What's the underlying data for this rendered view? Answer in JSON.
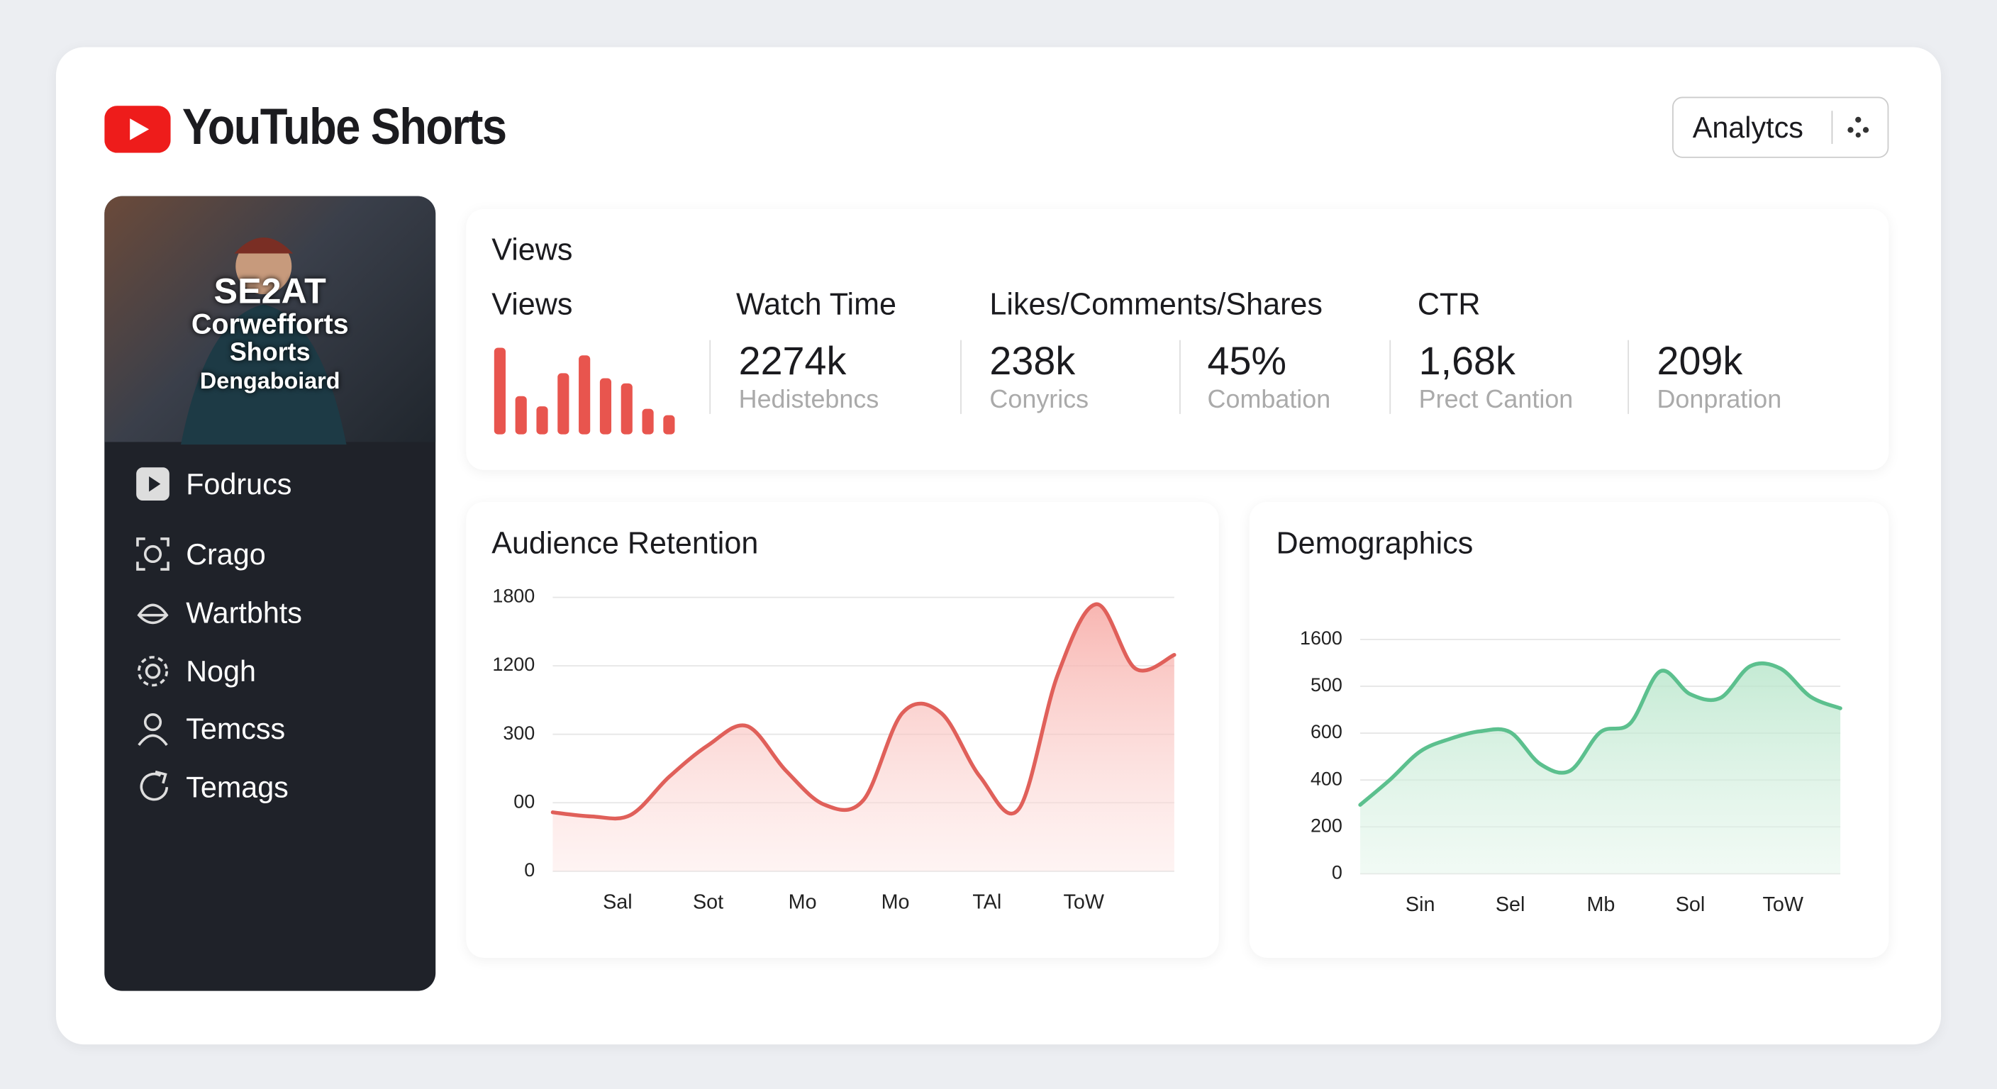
{
  "header": {
    "title": "YouTube Shorts",
    "button": "Analytcs"
  },
  "sidebar": {
    "thumbnail_text": [
      "SE2AT",
      "Corwefforts",
      "Shorts",
      "Dengaboiard"
    ],
    "nav": [
      "Fodrucs",
      "Crago",
      "Wartbhts",
      "Nogh",
      "Temcss",
      "Temags"
    ]
  },
  "stats": {
    "title": "Views",
    "headings": [
      "Views",
      "Watch Time",
      "Likes/Comments/Shares",
      "CTR"
    ],
    "metrics": [
      {
        "value": "2274k",
        "sub": "Hedistebncs"
      },
      {
        "value": "238k",
        "sub": "Conyrics"
      },
      {
        "value": "45%",
        "sub": "Combation"
      },
      {
        "value": "1,68k",
        "sub": "Prect Cantion"
      },
      {
        "value": "209k",
        "sub": "Donpration"
      }
    ]
  },
  "chart_data": [
    {
      "type": "bar",
      "values": [
        68,
        30,
        22,
        48,
        62,
        44,
        40,
        20,
        15
      ],
      "color": "#e8554e"
    },
    {
      "type": "area",
      "title": "Audience Retention",
      "color": "#e0605a",
      "fill": "#f7b8b4",
      "x": [
        0,
        1,
        2,
        3,
        4,
        5,
        6,
        7,
        8,
        9,
        10,
        11,
        12,
        13,
        14,
        15,
        16
      ],
      "values": [
        0.86,
        0.8,
        0.82,
        1.38,
        1.84,
        2.12,
        1.47,
        0.97,
        1.04,
        2.31,
        2.31,
        1.38,
        0.91,
        2.87,
        3.9,
        2.96,
        3.16
      ],
      "xlim": [
        0,
        16
      ],
      "xticks": [
        {
          "value": 1.67,
          "label": "Sal"
        },
        {
          "value": 4,
          "label": "Sot"
        },
        {
          "value": 6.43,
          "label": "Mo"
        },
        {
          "value": 8.82,
          "label": "Mo"
        },
        {
          "value": 11.18,
          "label": "TAl"
        },
        {
          "value": 13.67,
          "label": "ToW"
        }
      ],
      "ylim": [
        0,
        4
      ],
      "yticks": [
        0,
        {
          "value": 1,
          "label": "00"
        },
        {
          "value": 2,
          "label": "300"
        },
        {
          "value": 3,
          "label": "1200"
        },
        {
          "value": 4,
          "label": "1800"
        }
      ],
      "grid": true
    },
    {
      "type": "area",
      "title": "Demographics",
      "color": "#5cc08e",
      "fill": "#bfe8cf",
      "x": [
        0,
        1,
        2,
        3,
        4,
        5,
        6,
        7,
        8,
        9,
        10,
        11,
        12,
        13,
        14,
        15,
        16
      ],
      "values": [
        1.47,
        2.01,
        2.61,
        2.88,
        3.04,
        3.02,
        2.34,
        2.2,
        3.02,
        3.21,
        4.32,
        3.83,
        3.75,
        4.43,
        4.38,
        3.78,
        3.53
      ],
      "xlim": [
        0,
        16
      ],
      "xticks": [
        {
          "value": 2,
          "label": "Sin"
        },
        {
          "value": 5,
          "label": "Sel"
        },
        {
          "value": 8.02,
          "label": "Mb"
        },
        {
          "value": 11,
          "label": "Sol"
        },
        {
          "value": 14.09,
          "label": "ToW"
        }
      ],
      "ylim": [
        0,
        5
      ],
      "yticks": [
        0,
        {
          "value": 1,
          "label": "200"
        },
        {
          "value": 2,
          "label": "400"
        },
        {
          "value": 3,
          "label": "600"
        },
        {
          "value": 4,
          "label": "500"
        },
        {
          "value": 5,
          "label": "1600"
        }
      ],
      "grid": true
    }
  ]
}
